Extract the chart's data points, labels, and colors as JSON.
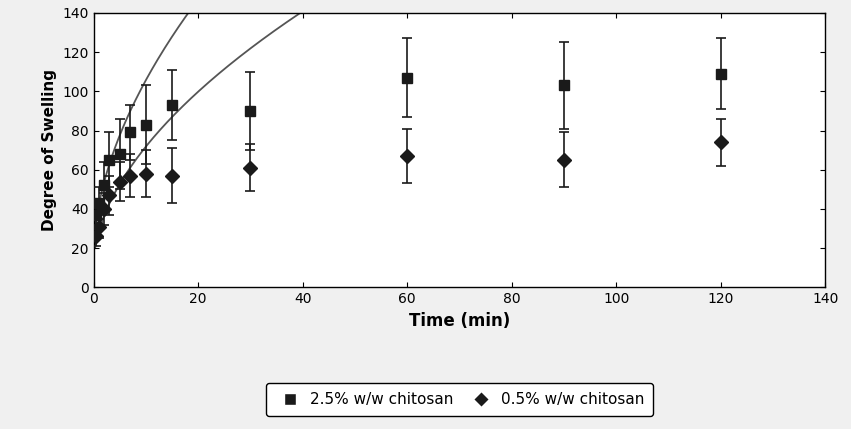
{
  "title": "",
  "xlabel": "Time (min)",
  "ylabel": "Degree of Swelling",
  "xlim": [
    0,
    140
  ],
  "ylim": [
    0,
    140
  ],
  "xticks": [
    0,
    20,
    40,
    60,
    80,
    100,
    120,
    140
  ],
  "yticks": [
    0,
    20,
    40,
    60,
    80,
    100,
    120,
    140
  ],
  "series_25": {
    "label": "2.5% w/w chitosan",
    "x": [
      0.5,
      1,
      2,
      3,
      5,
      7,
      10,
      15,
      30,
      60,
      90,
      120
    ],
    "y": [
      37,
      43,
      52,
      65,
      68,
      79,
      83,
      93,
      90,
      107,
      103,
      109
    ],
    "yerr": [
      5,
      8,
      12,
      14,
      18,
      14,
      20,
      18,
      20,
      20,
      22,
      18
    ],
    "marker": "s",
    "color": "#1a1a1a"
  },
  "series_05": {
    "label": "0.5% w/w chitosan",
    "x": [
      0.5,
      1,
      2,
      3,
      5,
      7,
      10,
      15,
      30,
      60,
      90,
      120
    ],
    "y": [
      26,
      31,
      40,
      47,
      54,
      57,
      58,
      57,
      61,
      67,
      65,
      74
    ],
    "yerr": [
      5,
      6,
      8,
      10,
      10,
      11,
      12,
      14,
      12,
      14,
      14,
      12
    ],
    "marker": "D",
    "color": "#1a1a1a"
  },
  "background_color": "#f0f0f0",
  "plot_bg_color": "#ffffff",
  "fit_color": "#555555",
  "fit_25_params": [
    25.0,
    0.55,
    17.0
  ],
  "fit_05_params": [
    17.0,
    0.55,
    11.5
  ],
  "figsize": [
    8.51,
    4.29
  ],
  "dpi": 100
}
